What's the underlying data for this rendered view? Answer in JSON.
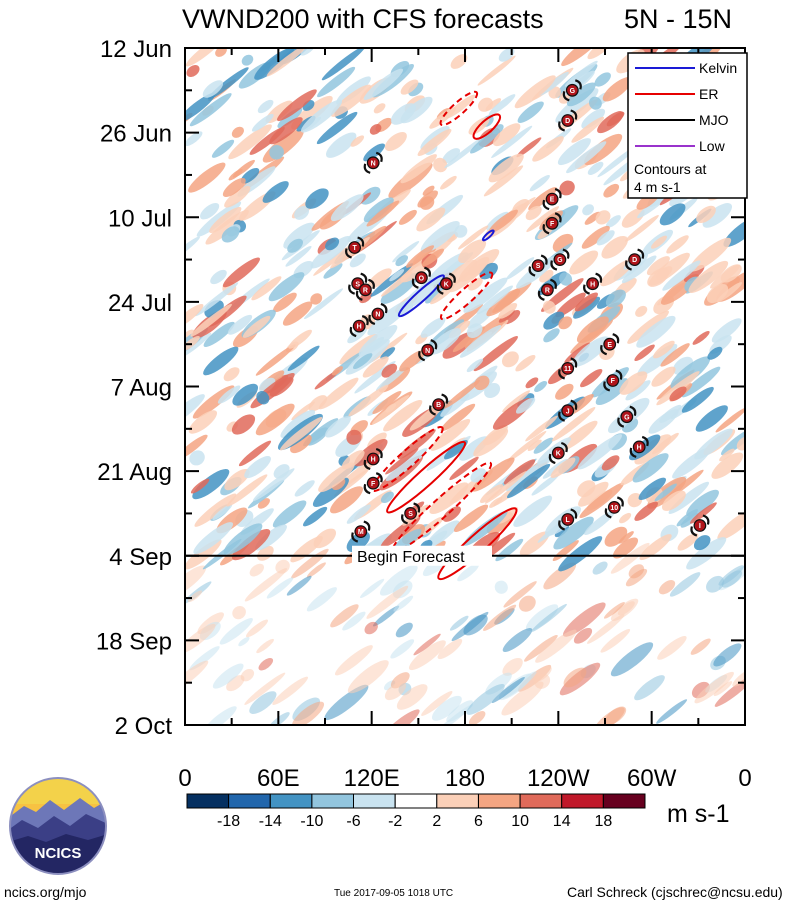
{
  "chart_data": {
    "type": "heatmap",
    "title": "VWND200 with CFS forecasts",
    "region": "5N - 15N",
    "x_tick_labels": [
      "0",
      "60E",
      "120E",
      "180",
      "120W",
      "60W",
      "0"
    ],
    "x_range_deg": [
      0,
      360
    ],
    "y_tick_labels": [
      "12 Jun",
      "26 Jun",
      "10 Jul",
      "24 Jul",
      "7 Aug",
      "21 Aug",
      "4 Sep",
      "18 Sep",
      "2 Oct"
    ],
    "y_range_days": [
      0,
      112
    ],
    "begin_forecast_day": 84,
    "begin_forecast_label": "Begin Forecast",
    "colorbar": {
      "colors": [
        "#053061",
        "#2166ac",
        "#4393c3",
        "#92c5de",
        "#c9e3f0",
        "#ffffff",
        "#fbd0b8",
        "#f4a582",
        "#e06a5a",
        "#c0182a",
        "#67001f"
      ],
      "tick_labels": [
        "-18",
        "-14",
        "-10",
        "-6",
        "-2",
        "2",
        "6",
        "10",
        "14",
        "18"
      ],
      "units": "m s-1"
    },
    "legend": {
      "items": [
        {
          "label": "Kelvin",
          "color": "#1a1ad6"
        },
        {
          "label": "ER",
          "color": "#e60000"
        },
        {
          "label": "MJO",
          "color": "#000000"
        },
        {
          "label": "Low",
          "color": "#9933cc"
        }
      ],
      "note_line1": "Contours at",
      "note_line2": "4 m s-1"
    },
    "storms": [
      {
        "label": "G",
        "lon": 249,
        "day": 7
      },
      {
        "label": "D",
        "lon": 246,
        "day": 12
      },
      {
        "label": "N",
        "lon": 121,
        "day": 19
      },
      {
        "label": "E",
        "lon": 236,
        "day": 25
      },
      {
        "label": "F",
        "lon": 236,
        "day": 29
      },
      {
        "label": "T",
        "lon": 109,
        "day": 33
      },
      {
        "label": "G",
        "lon": 241,
        "day": 35
      },
      {
        "label": "S",
        "lon": 227,
        "day": 36
      },
      {
        "label": "D",
        "lon": 289,
        "day": 35
      },
      {
        "label": "S",
        "lon": 111,
        "day": 39
      },
      {
        "label": "R",
        "lon": 116,
        "day": 40
      },
      {
        "label": "O",
        "lon": 152,
        "day": 38
      },
      {
        "label": "K",
        "lon": 168,
        "day": 39
      },
      {
        "label": "R",
        "lon": 233,
        "day": 40
      },
      {
        "label": "H",
        "lon": 262,
        "day": 39
      },
      {
        "label": "H",
        "lon": 112,
        "day": 46
      },
      {
        "label": "N",
        "lon": 124,
        "day": 44
      },
      {
        "label": "N",
        "lon": 156,
        "day": 50
      },
      {
        "label": "E",
        "lon": 273,
        "day": 49
      },
      {
        "label": "11",
        "lon": 246,
        "day": 53
      },
      {
        "label": "F",
        "lon": 275,
        "day": 55
      },
      {
        "label": "B",
        "lon": 163,
        "day": 59
      },
      {
        "label": "J",
        "lon": 246,
        "day": 60
      },
      {
        "label": "G",
        "lon": 284,
        "day": 61
      },
      {
        "label": "K",
        "lon": 240,
        "day": 67
      },
      {
        "label": "H",
        "lon": 292,
        "day": 66
      },
      {
        "label": "H",
        "lon": 121,
        "day": 68
      },
      {
        "label": "F",
        "lon": 121,
        "day": 72
      },
      {
        "label": "S",
        "lon": 145,
        "day": 77
      },
      {
        "label": "L",
        "lon": 246,
        "day": 78
      },
      {
        "label": "10",
        "lon": 276,
        "day": 76
      },
      {
        "label": "I",
        "lon": 331,
        "day": 79
      },
      {
        "label": "M",
        "lon": 113,
        "day": 80
      }
    ],
    "er_contours_solid": [
      {
        "lon": 194,
        "day": 13,
        "len": 17,
        "wid": 6
      },
      {
        "lon": 155,
        "day": 71,
        "len": 52,
        "wid": 8
      },
      {
        "lon": 188,
        "day": 82,
        "len": 52,
        "wid": 9
      }
    ],
    "er_contours_dashed": [
      {
        "lon": 176,
        "day": 10,
        "len": 24,
        "wid": 6
      },
      {
        "lon": 181,
        "day": 41,
        "len": 34,
        "wid": 7
      },
      {
        "lon": 143,
        "day": 68,
        "len": 47,
        "wid": 8
      },
      {
        "lon": 165,
        "day": 76,
        "len": 66,
        "wid": 9
      }
    ],
    "kelvin_contours": [
      {
        "lon": 195,
        "day": 31,
        "len": 7,
        "wid": 2
      },
      {
        "lon": 152,
        "day": 41,
        "len": 30,
        "wid": 5
      }
    ]
  },
  "footer": {
    "logo_text": "NCICS",
    "url": "ncics.org/mjo",
    "timestamp": "Tue 2017-09-05 1018 UTC",
    "author": "Carl Schreck (cjschrec@ncsu.edu)"
  }
}
